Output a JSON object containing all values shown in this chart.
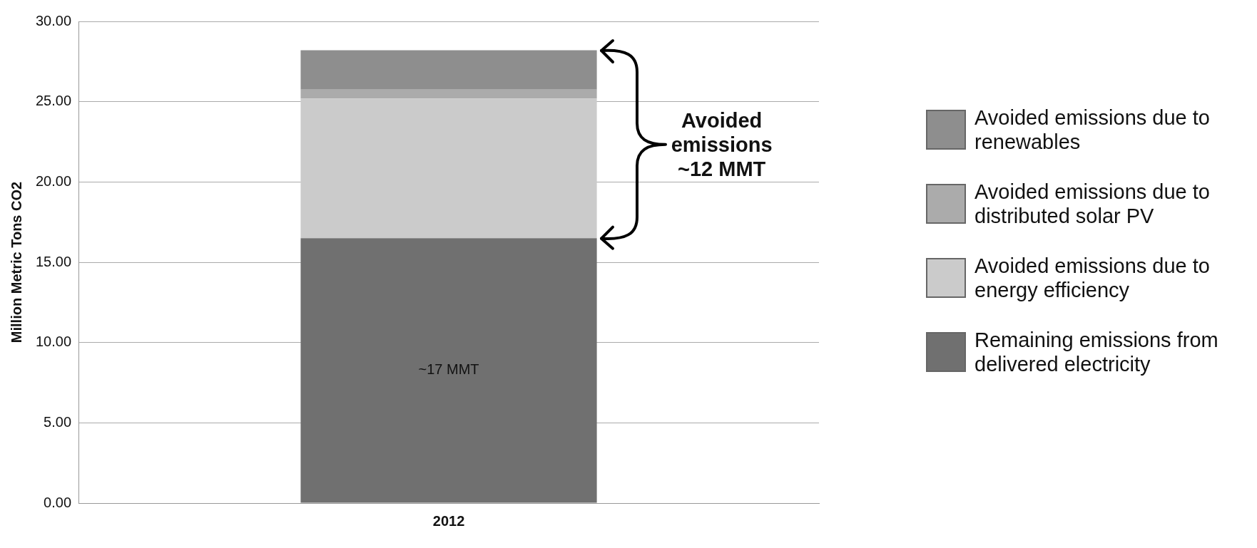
{
  "chart_data": {
    "type": "bar",
    "stacked": true,
    "categories": [
      "2012"
    ],
    "ylabel": "Million Metric Tons CO2",
    "ylim": [
      0,
      30
    ],
    "yticks": [
      {
        "value": 0,
        "label": "0.00"
      },
      {
        "value": 5,
        "label": "5.00"
      },
      {
        "value": 10,
        "label": "10.00"
      },
      {
        "value": 15,
        "label": "15.00"
      },
      {
        "value": 20,
        "label": "20.00"
      },
      {
        "value": 25,
        "label": "25.00"
      },
      {
        "value": 30,
        "label": "30.00"
      }
    ],
    "grid": "y",
    "legend": "right",
    "series": [
      {
        "name": "Remaining emissions from delivered electricity",
        "color": "#707070",
        "values": [
          16.5
        ]
      },
      {
        "name": "Avoided emissions due to energy efficiency",
        "color": "#cbcbcb",
        "values": [
          8.7
        ]
      },
      {
        "name": "Avoided emissions due to distributed solar PV",
        "color": "#ababab",
        "values": [
          0.55
        ]
      },
      {
        "name": "Avoided emissions due to renewables",
        "color": "#8e8e8e",
        "values": [
          2.45
        ]
      }
    ],
    "annotations": [
      "~17 MMT",
      "Avoided emissions ~12 MMT"
    ]
  }
}
